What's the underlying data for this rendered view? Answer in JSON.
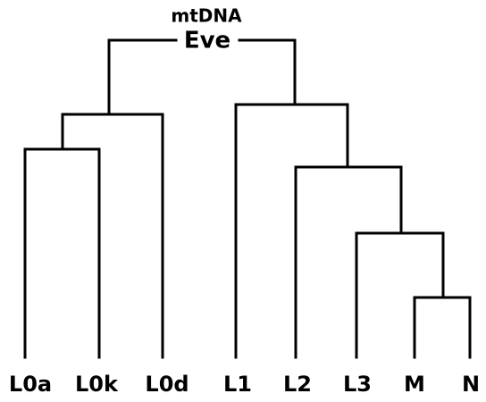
{
  "root": {
    "title": "mtDNA",
    "label": "Eve"
  },
  "leaves": [
    "L0a",
    "L0k",
    "L0d",
    "L1",
    "L2",
    "L3",
    "M",
    "N"
  ]
}
